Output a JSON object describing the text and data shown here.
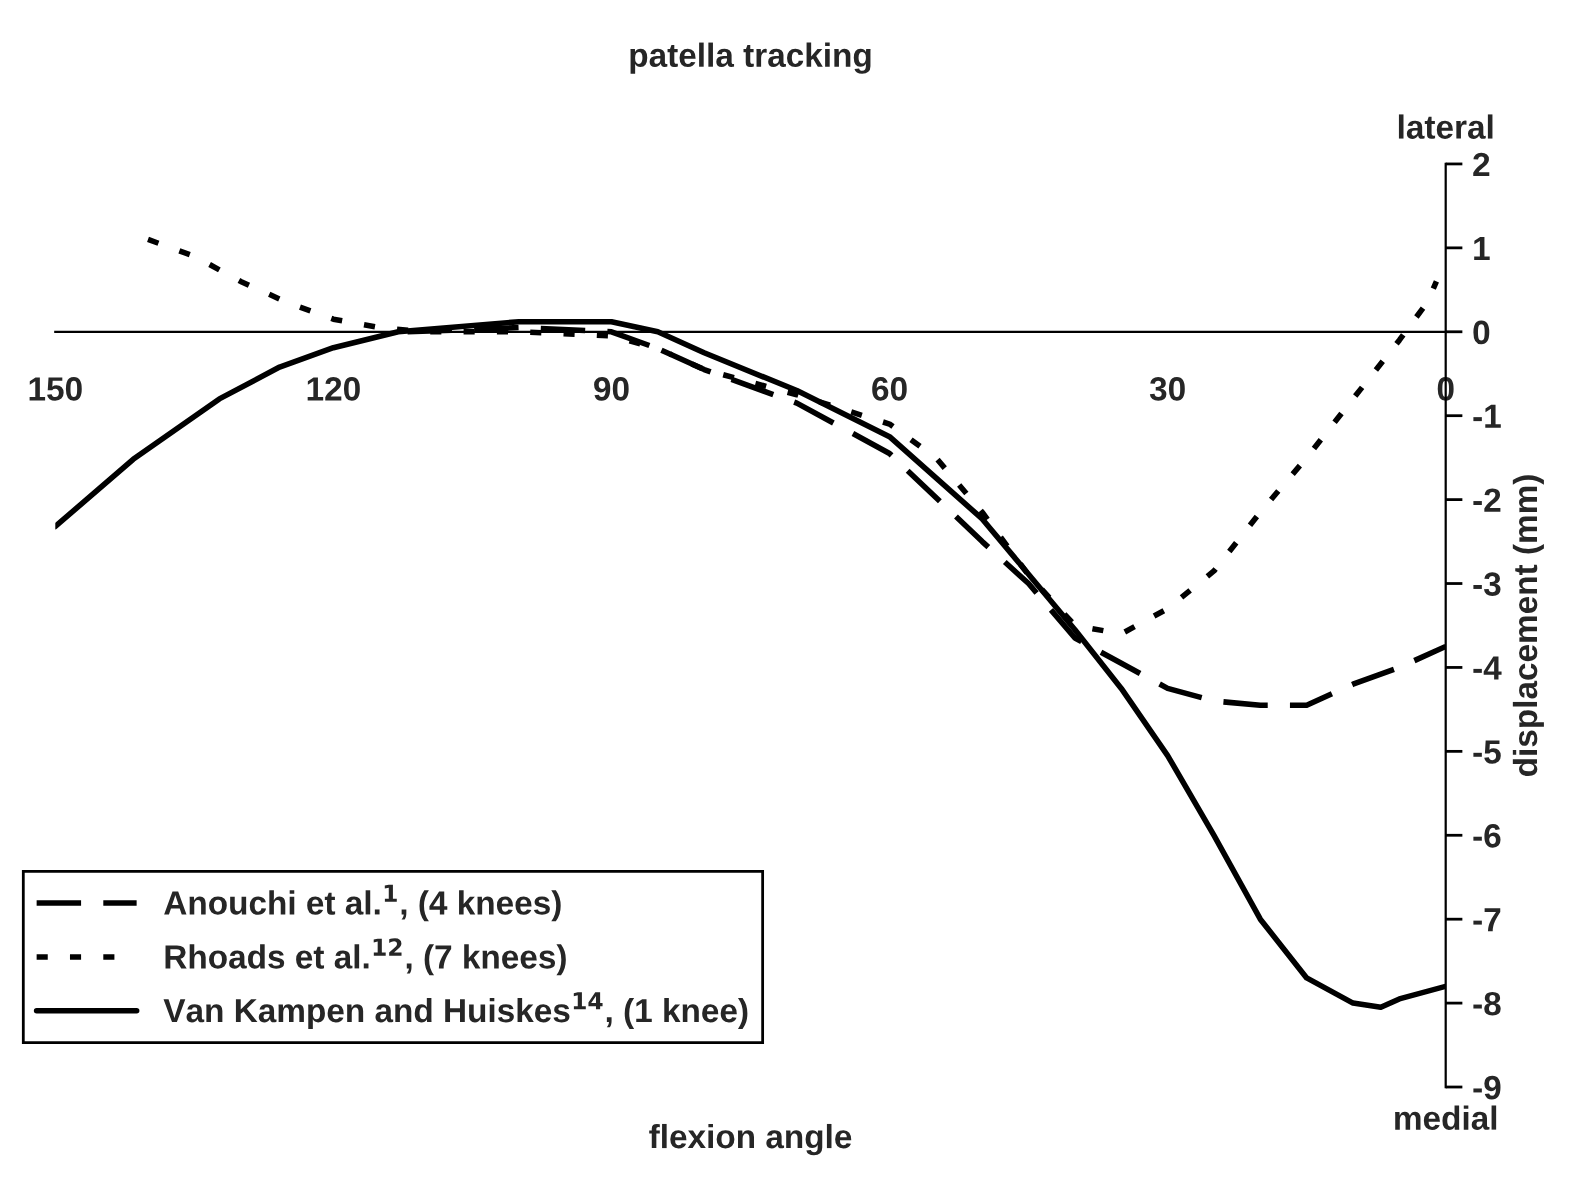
{
  "chart_data": {
    "type": "line",
    "title": "patella tracking",
    "xlabel": "flexion angle",
    "ylabel": "displacement (mm)",
    "annotations": [
      "lateral",
      "medial"
    ],
    "xlim": [
      150,
      0
    ],
    "xticks": [
      150,
      120,
      90,
      60,
      30,
      0
    ],
    "ylim": [
      -9,
      2
    ],
    "yticks": [
      -9,
      -8,
      -7,
      -6,
      -5,
      -4,
      -3,
      -2,
      -1,
      0,
      1,
      2
    ],
    "grid": false,
    "legend": "bottom left",
    "marker": "none",
    "series": [
      {
        "name": "Anouchi et al.$^{1}$, (4 knees)",
        "color": "#000000",
        "line_style": "dashed",
        "x": [
          112,
          100,
          90,
          85,
          80,
          70,
          60,
          50,
          45,
          40,
          35,
          30,
          25,
          20,
          15,
          10,
          5,
          0
        ],
        "values": [
          0.0,
          0.05,
          0.0,
          -0.2,
          -0.45,
          -0.85,
          -1.45,
          -2.5,
          -3.0,
          -3.65,
          -3.95,
          -4.25,
          -4.4,
          -4.45,
          -4.45,
          -4.2,
          -4.0,
          -3.75
        ]
      },
      {
        "name": "Rhoads et al.$^{12}$, (7 knees)",
        "color": "#000000",
        "line_style": "dotted",
        "x": [
          140,
          135,
          130,
          125,
          120,
          115,
          110,
          100,
          90,
          85,
          80,
          70,
          60,
          55,
          50,
          45,
          40,
          35,
          30,
          25,
          20,
          15,
          10,
          5,
          2,
          1
        ],
        "values": [
          1.1,
          0.9,
          0.6,
          0.35,
          0.15,
          0.05,
          0.0,
          0.0,
          -0.05,
          -0.2,
          -0.45,
          -0.75,
          -1.1,
          -1.5,
          -2.15,
          -2.9,
          -3.5,
          -3.6,
          -3.3,
          -2.85,
          -2.15,
          -1.5,
          -0.8,
          -0.1,
          0.35,
          0.6
        ]
      },
      {
        "name": "Van Kampen and Huiskes$^{14}$, (1 knee)",
        "color": "#000000",
        "line_style": "solid",
        "x": [
          150,
          141.6,
          132.3,
          125.8,
          120,
          113,
          100,
          90,
          85,
          80,
          70,
          60,
          50,
          40,
          35,
          30,
          25,
          20,
          15,
          10,
          7,
          5,
          0
        ],
        "values": [
          -2.32,
          -1.52,
          -0.8,
          -0.42,
          -0.19,
          0.0,
          0.12,
          0.12,
          0.0,
          -0.25,
          -0.7,
          -1.25,
          -2.23,
          -3.55,
          -4.25,
          -5.05,
          -6.0,
          -7.0,
          -7.7,
          -8.0,
          -8.05,
          -7.95,
          -7.8
        ]
      }
    ]
  }
}
